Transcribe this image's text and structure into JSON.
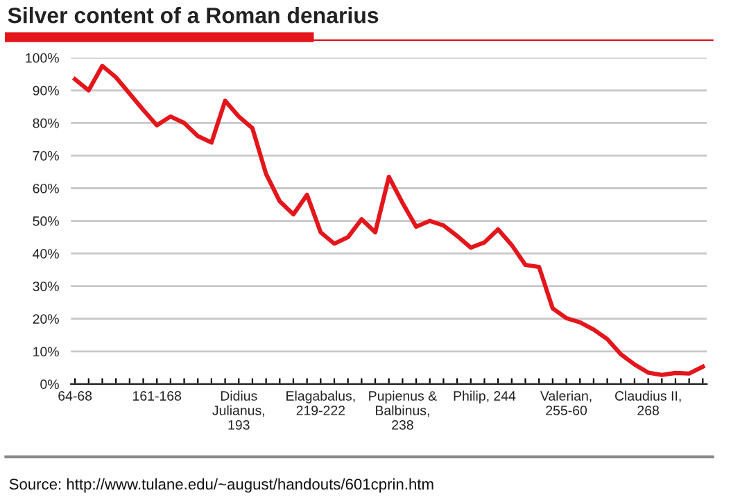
{
  "chart_data": {
    "type": "line",
    "title": "Silver content of a Roman denarius",
    "categories": [
      "64-68",
      null,
      null,
      null,
      null,
      null,
      "161-168",
      null,
      null,
      null,
      null,
      null,
      "Didius\nJulianus,\n193",
      null,
      null,
      null,
      null,
      null,
      "Elagabalus,\n219-222",
      null,
      null,
      null,
      null,
      null,
      "Pupienus &\nBalbinus,\n238",
      null,
      null,
      null,
      null,
      null,
      "Philip, 244",
      null,
      null,
      null,
      null,
      null,
      "Valerian,\n255-60",
      null,
      null,
      null,
      null,
      null,
      "Claudius II,\n268",
      null,
      null,
      null,
      null
    ],
    "series": [
      {
        "color": "#e3161b",
        "values": [
          93.4,
          90,
          97.5,
          94,
          89,
          84,
          79.3,
          82,
          80,
          76,
          74,
          86.8,
          82,
          78.4,
          64.4,
          56,
          52,
          58,
          46.5,
          43,
          45,
          50.5,
          46.5,
          63.5,
          55.5,
          48.2,
          50,
          48.6,
          45.4,
          41.8,
          43.4,
          47.4,
          42.6,
          36.5,
          35.9,
          23.2,
          20.2,
          18.9,
          16.7,
          13.8,
          9.1,
          6,
          3.5,
          2.8,
          3.4,
          3.2,
          5.3
        ]
      }
    ],
    "ylim": [
      0,
      100
    ],
    "yticks": [
      {
        "value": 0,
        "label": "0%"
      },
      {
        "value": 10,
        "label": "10%"
      },
      {
        "value": 20,
        "label": "20%"
      },
      {
        "value": 30,
        "label": "30%"
      },
      {
        "value": 40,
        "label": "40%"
      },
      {
        "value": 50,
        "label": "50%"
      },
      {
        "value": 60,
        "label": "60%"
      },
      {
        "value": 70,
        "label": "70%"
      },
      {
        "value": 80,
        "label": "80%"
      },
      {
        "value": 90,
        "label": "90%"
      },
      {
        "value": 100,
        "label": "100%"
      }
    ],
    "grid": "y",
    "marker": "none",
    "line_style": "solid",
    "annotations": [
      "Source: http://www.tulane.edu/~august/handouts/601cprin.htm"
    ]
  }
}
